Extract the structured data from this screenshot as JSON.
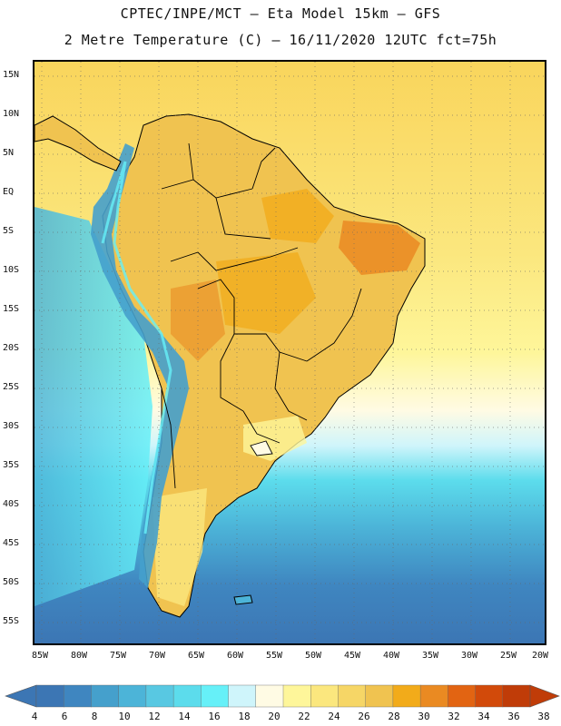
{
  "header": {
    "line1": "CPTEC/INPE/MCT –  Eta Model 15km – GFS",
    "line2": "2 Metre Temperature (C) – 16/11/2020 12UTC fct=75h"
  },
  "axes": {
    "lat_labels": [
      "15N",
      "10N",
      "5N",
      "EQ",
      "5S",
      "10S",
      "15S",
      "20S",
      "25S",
      "30S",
      "35S",
      "40S",
      "45S",
      "50S",
      "55S"
    ],
    "lon_labels": [
      "85W",
      "80W",
      "75W",
      "70W",
      "65W",
      "60W",
      "55W",
      "50W",
      "45W",
      "40W",
      "35W",
      "30W",
      "25W",
      "20W"
    ]
  },
  "colorbar": {
    "labels": [
      "4",
      "6",
      "8",
      "10",
      "12",
      "14",
      "16",
      "18",
      "20",
      "22",
      "24",
      "26",
      "28",
      "30",
      "32",
      "34",
      "36",
      "38"
    ],
    "colors": [
      "#3c76b4",
      "#3f86c0",
      "#45a0cc",
      "#4cb4d8",
      "#58c8e2",
      "#5cdcec",
      "#66f0f8",
      "#cff5fb",
      "#fffbe4",
      "#fef69a",
      "#fbe77e",
      "#f6d666",
      "#f0c350",
      "#f2ab1a",
      "#ea8a22",
      "#e26412",
      "#d24a0a",
      "#c03c08"
    ]
  },
  "map": {
    "ocean_north_color": "#f9d55c",
    "ocean_south_color": "#4cb4d8",
    "land_color": "#f0c350",
    "andes_color": "#45a0cc"
  }
}
